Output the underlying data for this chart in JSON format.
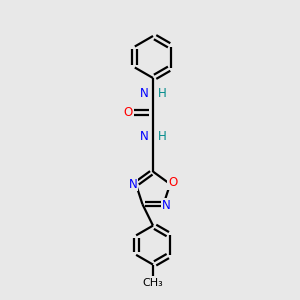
{
  "bg_color": "#e8e8e8",
  "bond_color": "#000000",
  "N_color": "#0000ff",
  "O_color": "#ff0000",
  "teal_color": "#008b8b",
  "line_width": 1.6,
  "font_size": 8.5,
  "xlim": [
    0,
    10
  ],
  "ylim": [
    0,
    10
  ]
}
